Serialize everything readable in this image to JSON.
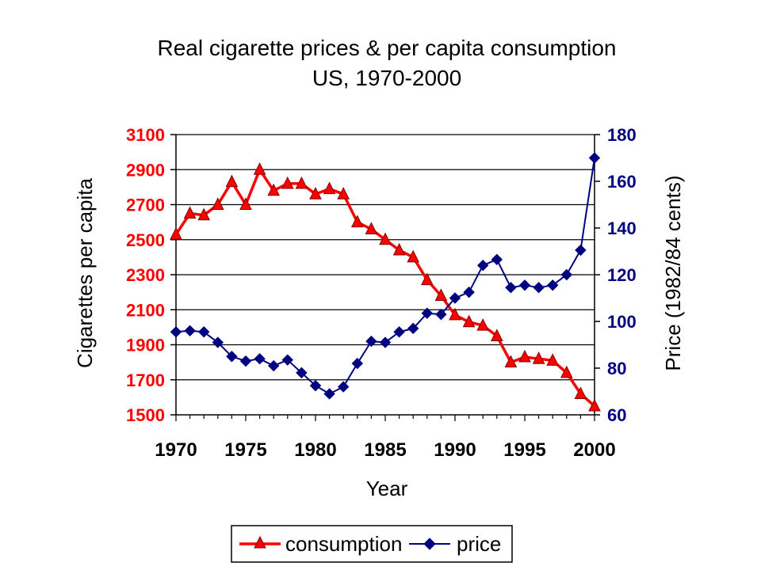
{
  "chart_data": {
    "type": "line",
    "title": "Real cigarette prices & per capita consumption",
    "subtitle": "US, 1970-2000",
    "xlabel": "Year",
    "ylabel_left": "Cigarettes per capita",
    "ylabel_right": "Price (1982/84 cents)",
    "x_ticks": [
      1970,
      1975,
      1980,
      1985,
      1990,
      1995,
      2000
    ],
    "ylim_left": [
      1500,
      3100
    ],
    "yticks_left": [
      1500,
      1700,
      1900,
      2100,
      2300,
      2500,
      2700,
      2900,
      3100
    ],
    "ylim_right": [
      60,
      180
    ],
    "yticks_right": [
      60,
      80,
      100,
      120,
      140,
      160,
      180
    ],
    "grid": "horizontal",
    "legend_position": "bottom",
    "colors": {
      "consumption": "#ff0000",
      "consumption_marker_edge": "#800000",
      "price": "#000080",
      "left_axis_text": "#ff0000",
      "right_axis_text": "#000080"
    },
    "x": [
      1970,
      1971,
      1972,
      1973,
      1974,
      1975,
      1976,
      1977,
      1978,
      1979,
      1980,
      1981,
      1982,
      1983,
      1984,
      1985,
      1986,
      1987,
      1988,
      1989,
      1990,
      1991,
      1992,
      1993,
      1994,
      1995,
      1996,
      1997,
      1998,
      1999,
      2000
    ],
    "series": [
      {
        "name": "consumption",
        "axis": "left",
        "marker": "triangle",
        "values": [
          2530,
          2650,
          2640,
          2700,
          2830,
          2700,
          2900,
          2780,
          2820,
          2820,
          2760,
          2790,
          2760,
          2600,
          2560,
          2500,
          2440,
          2400,
          2270,
          2180,
          2070,
          2030,
          2010,
          1950,
          1800,
          1830,
          1820,
          1810,
          1740,
          1620,
          1550
        ]
      },
      {
        "name": "price",
        "axis": "right",
        "marker": "diamond",
        "values": [
          95.5,
          96,
          95.5,
          91,
          85,
          83,
          84,
          81,
          83.5,
          78,
          72.5,
          69,
          72,
          82,
          91.5,
          91,
          95.5,
          97,
          103.5,
          103,
          110,
          112.5,
          124,
          126.5,
          114.5,
          115.5,
          114.5,
          115.5,
          120,
          130.5,
          170
        ]
      }
    ]
  }
}
